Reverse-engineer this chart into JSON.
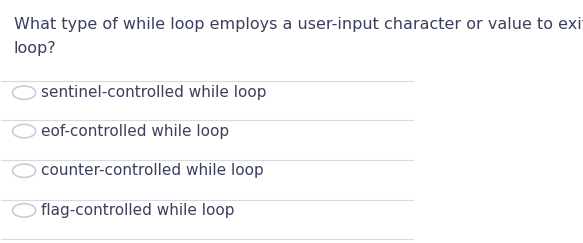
{
  "question_line1": "What type of while loop employs a user-input character or value to exit the",
  "question_line2": "loop?",
  "options": [
    "sentinel-controlled while loop",
    "eof-controlled while loop",
    "counter-controlled while loop",
    "flag-controlled while loop"
  ],
  "bg_color": "#ffffff",
  "text_color": "#3a3f5c",
  "question_fontsize": 11.5,
  "option_fontsize": 11.0,
  "circle_color": "#c8cdd8",
  "line_color": "#d8dae0",
  "fig_width": 5.83,
  "fig_height": 2.43
}
